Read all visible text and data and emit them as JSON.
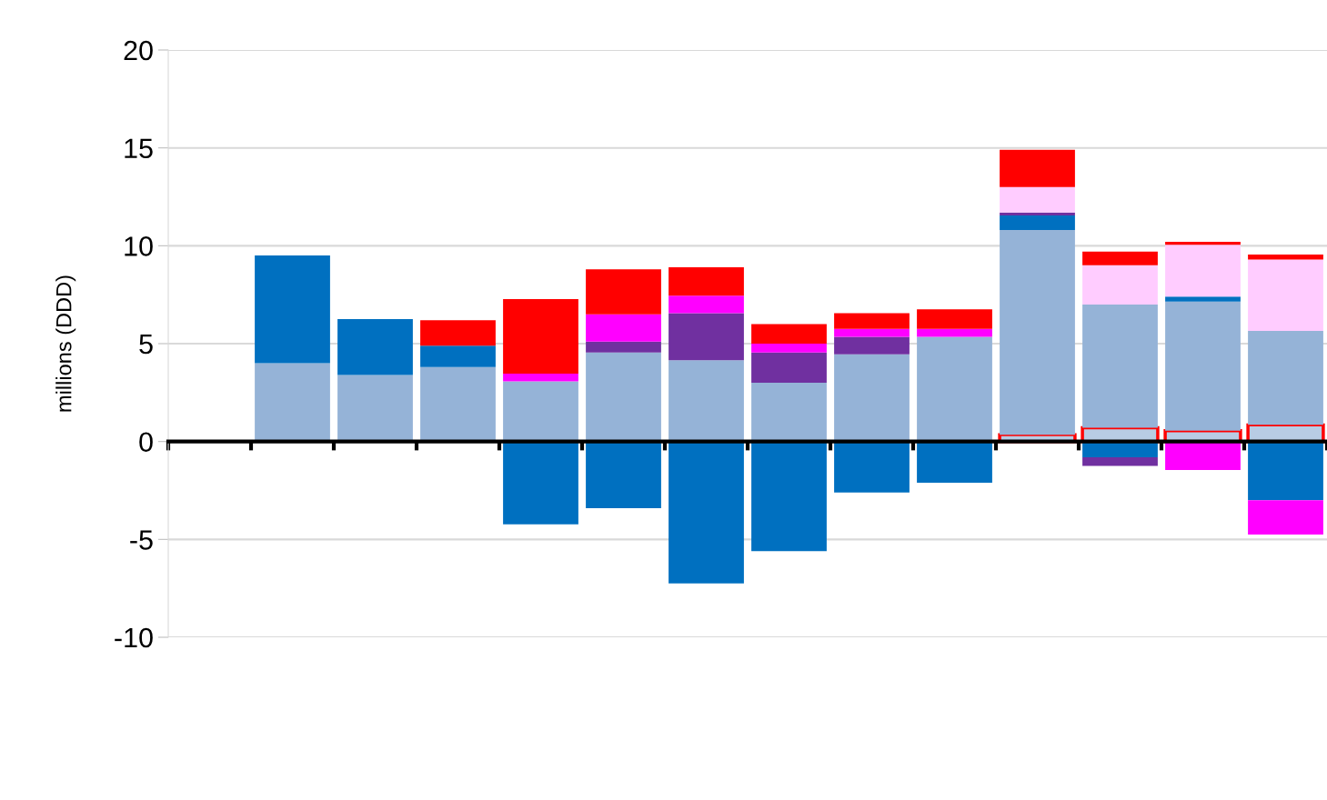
{
  "chart_data": {
    "type": "bar",
    "stacked": true,
    "ylabel": "millions (DDD)",
    "categories": [
      null,
      null,
      null,
      null,
      null,
      null,
      null,
      null,
      null,
      null,
      null,
      null,
      null,
      null
    ],
    "series": [
      {
        "color": "#b8cce4",
        "values": [
          null,
          null,
          null,
          null,
          null,
          null,
          null,
          null,
          null,
          null,
          0.35,
          0.7,
          0.55,
          0.85
        ]
      },
      {
        "color": "#95b3d7",
        "values": [
          null,
          4.0,
          3.4,
          3.8,
          3.07,
          4.55,
          4.15,
          3.0,
          4.45,
          5.35,
          10.45,
          6.3,
          6.6,
          4.8
        ]
      },
      {
        "color": "#0070c0",
        "values": [
          null,
          5.5,
          2.85,
          1.1,
          -4.23,
          -3.4,
          -7.25,
          -5.6,
          -2.6,
          -2.1,
          0.75,
          -0.8,
          0.25,
          -3.0
        ]
      },
      {
        "color": "#7030a0",
        "values": [
          null,
          null,
          null,
          null,
          null,
          0.55,
          2.4,
          1.55,
          0.9,
          null,
          0.15,
          -0.45,
          null,
          null
        ]
      },
      {
        "color": "#ff00ff",
        "values": [
          null,
          null,
          null,
          null,
          0.4,
          1.4,
          0.9,
          0.45,
          0.4,
          0.4,
          null,
          null,
          -1.45,
          -1.75
        ]
      },
      {
        "color": "#ffccff",
        "values": [
          null,
          null,
          null,
          null,
          null,
          null,
          null,
          null,
          null,
          null,
          1.3,
          2.0,
          2.65,
          3.65
        ]
      },
      {
        "color": "#ff0000",
        "values": [
          null,
          null,
          null,
          1.3,
          3.8,
          2.3,
          1.45,
          1.0,
          0.8,
          1.0,
          1.9,
          0.7,
          0.15,
          0.25
        ]
      }
    ],
    "ylim": [
      -10,
      20
    ],
    "yticks": [
      -10,
      -5,
      0,
      5,
      10,
      15,
      20
    ],
    "grid": "y",
    "tick_labels": "y"
  }
}
